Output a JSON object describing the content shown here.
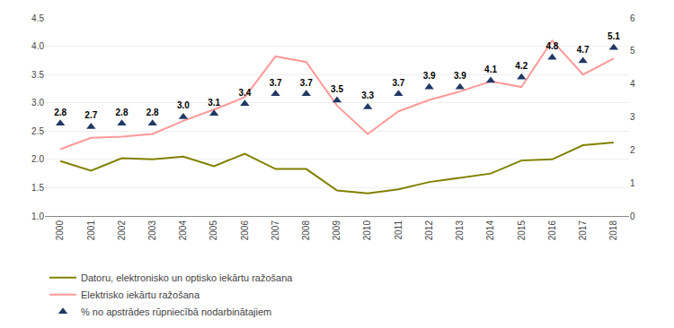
{
  "chart_data": {
    "type": "line",
    "x": [
      2000,
      2001,
      2002,
      2003,
      2004,
      2005,
      2006,
      2007,
      2008,
      2009,
      2010,
      2011,
      2012,
      2013,
      2014,
      2015,
      2016,
      2017,
      2018
    ],
    "series": [
      {
        "name": "Datoru, elektronisko un optisko iekārtu ražošana",
        "type": "line",
        "color": "#808000",
        "values": [
          1.97,
          1.8,
          2.02,
          2.0,
          2.05,
          1.88,
          2.1,
          1.83,
          1.83,
          1.45,
          1.4,
          1.47,
          1.6,
          1.68,
          1.75,
          1.98,
          2.0,
          2.25,
          2.3
        ]
      },
      {
        "name": "Elektrisko iekārtu ražošana",
        "type": "line",
        "color": "#FF9999",
        "values": [
          2.18,
          2.38,
          2.4,
          2.45,
          2.68,
          2.88,
          3.1,
          3.82,
          3.72,
          2.95,
          2.45,
          2.85,
          3.05,
          3.2,
          3.38,
          3.28,
          4.1,
          3.5,
          3.78
        ]
      },
      {
        "name": "% no apstrādes rūpniecībā nodarbinātajiem",
        "type": "scatter",
        "marker": "triangle-up",
        "color": "#1F3864",
        "axis": "y2",
        "data_labels": true,
        "values": [
          2.8,
          2.7,
          2.8,
          2.8,
          3.0,
          3.1,
          3.4,
          3.7,
          3.7,
          3.5,
          3.3,
          3.7,
          3.9,
          3.9,
          4.1,
          4.2,
          4.8,
          4.7,
          5.1
        ],
        "value_labels": [
          "2.8",
          "2.7",
          "2.8",
          "2.8",
          "3.0",
          "3.1",
          "3.4",
          "3.7",
          "3.7",
          "3.5",
          "3.3",
          "3.7",
          "3.9",
          "3.9",
          "4.1",
          "4.2",
          "4.8",
          "4.7",
          "5.1"
        ]
      }
    ],
    "xlim": [
      1999.5,
      2018.5
    ],
    "xticks": [
      2000,
      2001,
      2002,
      2003,
      2004,
      2005,
      2006,
      2007,
      2008,
      2009,
      2010,
      2011,
      2012,
      2013,
      2014,
      2015,
      2016,
      2017,
      2018
    ],
    "ylim": [
      1.0,
      4.5
    ],
    "yticks": [
      {
        "value": 1.0,
        "label": "1.0"
      },
      1.5,
      {
        "value": 2.0,
        "label": "2.0"
      },
      2.5,
      {
        "value": 3.0,
        "label": "3.0"
      },
      3.5,
      {
        "value": 4.0,
        "label": "4.0"
      },
      4.5
    ],
    "y2lim": [
      0,
      6
    ],
    "y2ticks": [
      0,
      1,
      2,
      3,
      4,
      5,
      6
    ],
    "grid": true,
    "legend": "lower left"
  }
}
